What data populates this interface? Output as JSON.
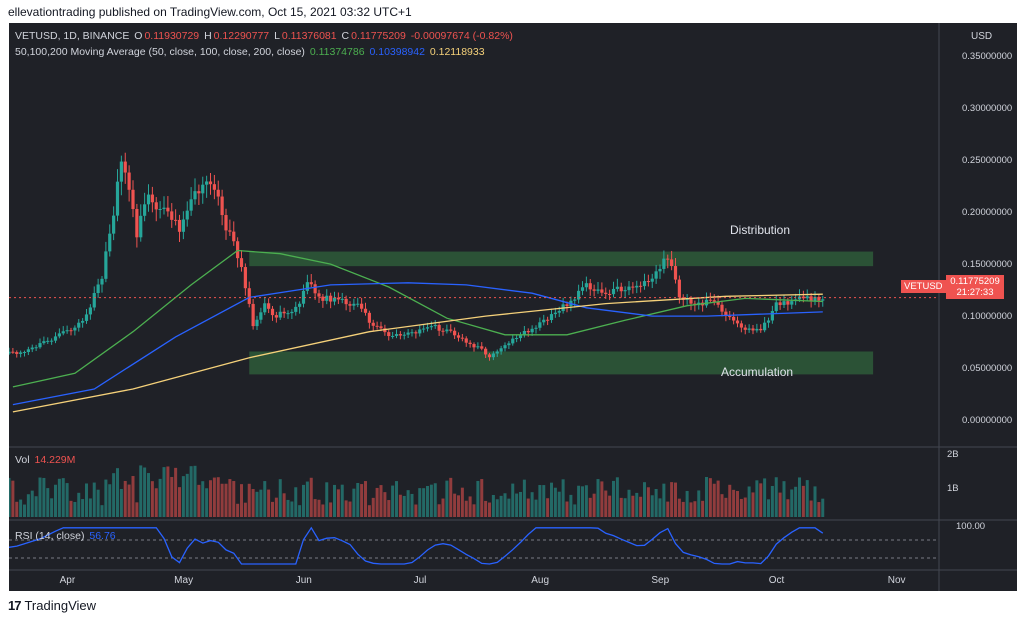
{
  "header": {
    "publisher": "ellevationtrading published on TradingView.com, Oct 15, 2021 03:32 UTC+1"
  },
  "legend": {
    "symbol": "VETUSD, 1D, BINANCE",
    "o_label": "O",
    "o_value": "0.11930729",
    "h_label": "H",
    "h_value": "0.12290777",
    "l_label": "L",
    "l_value": "0.11376081",
    "c_label": "C",
    "c_value": "0.11775209",
    "change": "-0.00097674 (-0.82%)",
    "ma_label": "50,100,200 Moving Average (50, close, 100, close, 200, close)",
    "ma50_value": "0.11374786",
    "ma100_value": "0.10398942",
    "ma200_value": "0.12118933"
  },
  "vol_legend": {
    "label": "Vol",
    "value": "14.229M"
  },
  "rsi_legend": {
    "label": "RSI (14, close)",
    "value": "56.76"
  },
  "price_tag": {
    "symbol": "VETUSD",
    "price": "0.11775209",
    "countdown": "21:27:33"
  },
  "annotations": {
    "upper": "Distribution",
    "lower": "Accumulation"
  },
  "footer": {
    "brand": "TradingView"
  },
  "colors": {
    "background": "#1f2127",
    "up": "#26a69a",
    "down": "#ef5350",
    "ma50": "#4caf50",
    "ma100": "#2962ff",
    "ma200": "#f5d17a",
    "zone": "#2e5a3a",
    "rsi": "#2962ff",
    "text": "#d1d4dc"
  },
  "chart_data": {
    "type": "candlestick",
    "title": "VETUSD, 1D, BINANCE",
    "currency": "USD",
    "y_ticks": [
      "0.35000000",
      "0.30000000",
      "0.25000000",
      "0.20000000",
      "0.15000000",
      "0.10000000",
      "0.05000000",
      "0.00000000"
    ],
    "ylim": [
      -0.02,
      0.372
    ],
    "x_ticks": [
      "Apr",
      "May",
      "Jun",
      "Jul",
      "Aug",
      "Sep",
      "Oct",
      "Nov"
    ],
    "close_series": [
      [
        "2021-03-20",
        0.064
      ],
      [
        "2021-03-27",
        0.072
      ],
      [
        "2021-04-03",
        0.085
      ],
      [
        "2021-04-08",
        0.1
      ],
      [
        "2021-04-12",
        0.14
      ],
      [
        "2021-04-15",
        0.195
      ],
      [
        "2021-04-17",
        0.255
      ],
      [
        "2021-04-19",
        0.225
      ],
      [
        "2021-04-21",
        0.18
      ],
      [
        "2021-04-24",
        0.215
      ],
      [
        "2021-04-28",
        0.2
      ],
      [
        "2021-05-02",
        0.185
      ],
      [
        "2021-05-06",
        0.215
      ],
      [
        "2021-05-09",
        0.235
      ],
      [
        "2021-05-12",
        0.215
      ],
      [
        "2021-05-14",
        0.185
      ],
      [
        "2021-05-17",
        0.16
      ],
      [
        "2021-05-19",
        0.13
      ],
      [
        "2021-05-21",
        0.09
      ],
      [
        "2021-05-24",
        0.11
      ],
      [
        "2021-05-27",
        0.1
      ],
      [
        "2021-06-01",
        0.108
      ],
      [
        "2021-06-04",
        0.13
      ],
      [
        "2021-06-08",
        0.118
      ],
      [
        "2021-06-13",
        0.115
      ],
      [
        "2021-06-17",
        0.11
      ],
      [
        "2021-06-21",
        0.092
      ],
      [
        "2021-06-26",
        0.08
      ],
      [
        "2021-07-01",
        0.085
      ],
      [
        "2021-07-07",
        0.09
      ],
      [
        "2021-07-12",
        0.082
      ],
      [
        "2021-07-17",
        0.072
      ],
      [
        "2021-07-21",
        0.062
      ],
      [
        "2021-07-26",
        0.075
      ],
      [
        "2021-08-01",
        0.088
      ],
      [
        "2021-08-08",
        0.105
      ],
      [
        "2021-08-15",
        0.13
      ],
      [
        "2021-08-19",
        0.12
      ],
      [
        "2021-08-26",
        0.128
      ],
      [
        "2021-08-31",
        0.132
      ],
      [
        "2021-09-05",
        0.158
      ],
      [
        "2021-09-08",
        0.12
      ],
      [
        "2021-09-12",
        0.113
      ],
      [
        "2021-09-17",
        0.112
      ],
      [
        "2021-09-21",
        0.098
      ],
      [
        "2021-09-25",
        0.088
      ],
      [
        "2021-09-29",
        0.085
      ],
      [
        "2021-10-03",
        0.11
      ],
      [
        "2021-10-08",
        0.115
      ],
      [
        "2021-10-15",
        0.118
      ]
    ],
    "ma50_series": [
      [
        "2021-03-20",
        0.032
      ],
      [
        "2021-04-05",
        0.045
      ],
      [
        "2021-04-20",
        0.085
      ],
      [
        "2021-05-05",
        0.13
      ],
      [
        "2021-05-17",
        0.163
      ],
      [
        "2021-05-28",
        0.16
      ],
      [
        "2021-06-10",
        0.15
      ],
      [
        "2021-06-25",
        0.128
      ],
      [
        "2021-07-10",
        0.098
      ],
      [
        "2021-07-25",
        0.082
      ],
      [
        "2021-08-10",
        0.082
      ],
      [
        "2021-08-25",
        0.096
      ],
      [
        "2021-09-10",
        0.11
      ],
      [
        "2021-09-25",
        0.117
      ],
      [
        "2021-10-15",
        0.114
      ]
    ],
    "ma100_series": [
      [
        "2021-03-20",
        0.015
      ],
      [
        "2021-04-10",
        0.03
      ],
      [
        "2021-05-01",
        0.08
      ],
      [
        "2021-05-20",
        0.118
      ],
      [
        "2021-06-10",
        0.13
      ],
      [
        "2021-06-30",
        0.132
      ],
      [
        "2021-07-15",
        0.13
      ],
      [
        "2021-08-01",
        0.122
      ],
      [
        "2021-08-15",
        0.108
      ],
      [
        "2021-09-01",
        0.1
      ],
      [
        "2021-09-15",
        0.1
      ],
      [
        "2021-10-15",
        0.104
      ]
    ],
    "ma200_series": [
      [
        "2021-03-20",
        0.008
      ],
      [
        "2021-04-20",
        0.03
      ],
      [
        "2021-05-20",
        0.06
      ],
      [
        "2021-06-20",
        0.085
      ],
      [
        "2021-07-20",
        0.1
      ],
      [
        "2021-08-20",
        0.112
      ],
      [
        "2021-09-20",
        0.119
      ],
      [
        "2021-10-15",
        0.121
      ]
    ],
    "zones": [
      {
        "label": "Distribution",
        "from": "2021-05-20",
        "to": "2021-10-28",
        "low": 0.148,
        "high": 0.162
      },
      {
        "label": "Accumulation",
        "from": "2021-05-20",
        "to": "2021-10-28",
        "low": 0.044,
        "high": 0.066
      }
    ],
    "volume_ticks": [
      "2B",
      "1B"
    ],
    "rsi_ticks": [
      "100.00"
    ],
    "last_rsi": 56.76,
    "last_volume": "14.229M"
  }
}
